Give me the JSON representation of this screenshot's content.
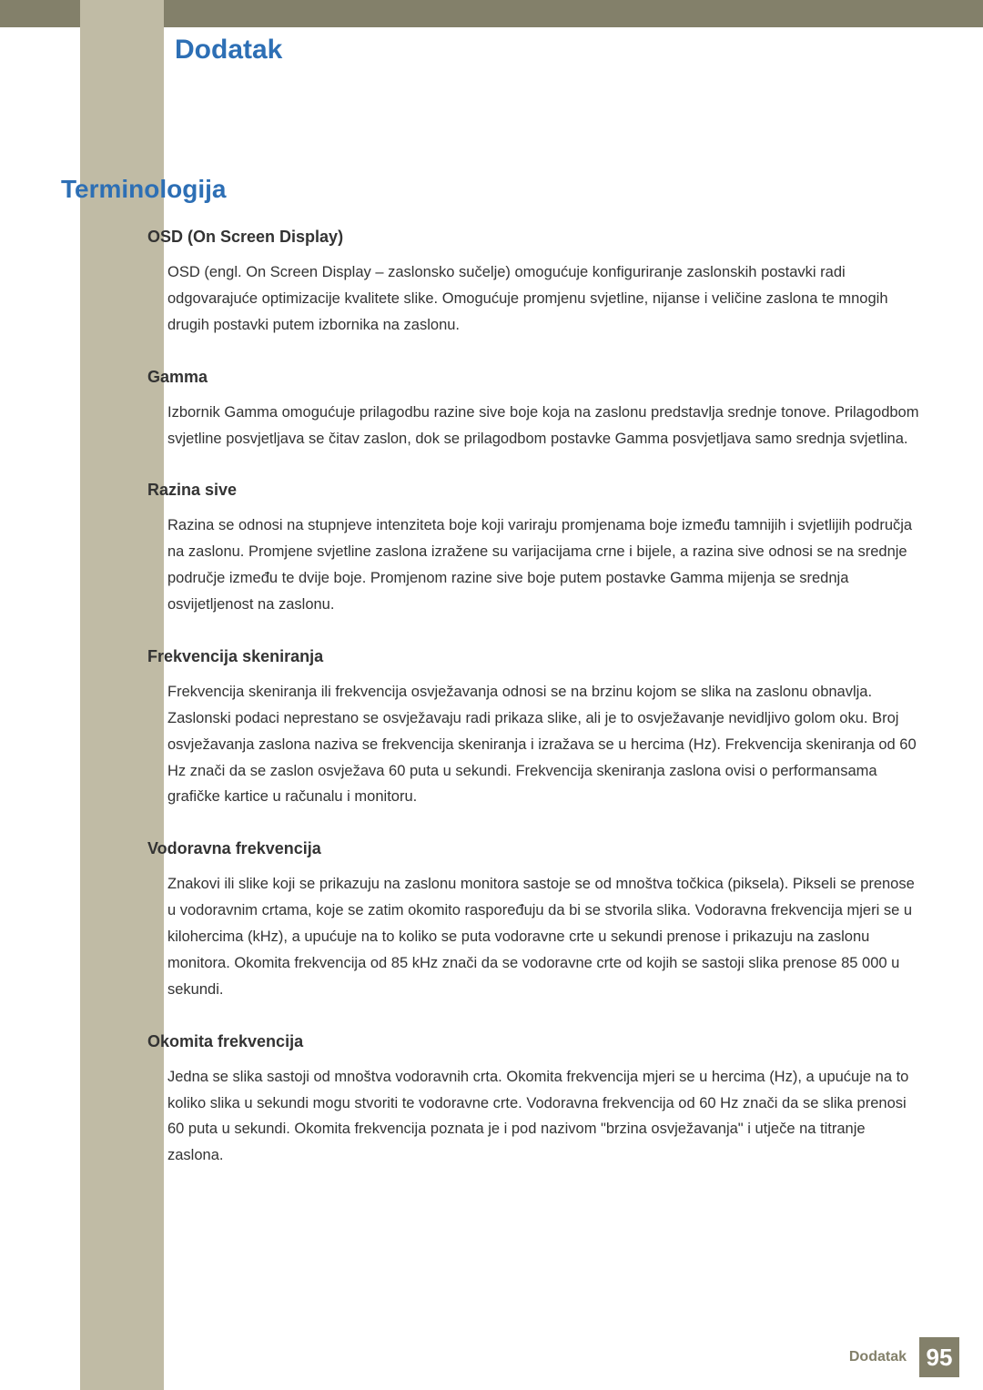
{
  "colors": {
    "top_band": "#83806a",
    "left_band": "#c0bba5",
    "chapter_title": "#2d6fb5",
    "section_title": "#2d6fb5",
    "body_text": "#333333",
    "footer_label": "#83806a",
    "footer_page_bg": "#83806a",
    "footer_page_text": "#ffffff",
    "page_bg": "#ffffff"
  },
  "typography": {
    "chapter_fontsize": 30,
    "section_fontsize": 28,
    "heading_fontsize": 18,
    "body_fontsize": 16.5,
    "body_lineheight": 1.75,
    "footer_label_fontsize": 16,
    "footer_page_fontsize": 26
  },
  "chapter_title": "Dodatak",
  "section_title": "Terminologija",
  "terms": [
    {
      "heading": "OSD (On Screen Display)",
      "body": "OSD (engl. On Screen Display – zaslonsko sučelje) omogućuje konfiguriranje zaslonskih postavki radi odgovarajuće optimizacije kvalitete slike. Omogućuje promjenu svjetline, nijanse i veličine zaslona te mnogih drugih postavki putem izbornika na zaslonu."
    },
    {
      "heading": "Gamma",
      "body": "Izbornik Gamma omogućuje prilagodbu razine sive boje koja na zaslonu predstavlja srednje tonove. Prilagodbom svjetline posvjetljava se čitav zaslon, dok se prilagodbom postavke Gamma posvjetljava samo srednja svjetlina."
    },
    {
      "heading": "Razina sive",
      "body": "Razina se odnosi na stupnjeve intenziteta boje koji variraju promjenama boje između tamnijih i svjetlijih područja na zaslonu. Promjene svjetline zaslona izražene su varijacijama crne i bijele, a razina sive odnosi se na srednje područje između te dvije boje. Promjenom razine sive boje putem postavke Gamma mijenja se srednja osvijetljenost na zaslonu."
    },
    {
      "heading": "Frekvencija skeniranja",
      "body": "Frekvencija skeniranja ili frekvencija osvježavanja odnosi se na brzinu kojom se slika na zaslonu obnavlja. Zaslonski podaci neprestano se osvježavaju radi prikaza slike, ali je to osvježavanje nevidljivo golom oku. Broj osvježavanja zaslona naziva se frekvencija skeniranja i izražava se u hercima (Hz). Frekvencija skeniranja od 60 Hz znači da se zaslon osvježava 60 puta u sekundi. Frekvencija skeniranja zaslona ovisi o performansama grafičke kartice u računalu i monitoru."
    },
    {
      "heading": "Vodoravna frekvencija",
      "body": "Znakovi ili slike koji se prikazuju na zaslonu monitora sastoje se od mnoštva točkica (piksela). Pikseli se prenose u vodoravnim crtama, koje se zatim okomito raspoređuju da bi se stvorila slika. Vodoravna frekvencija mjeri se u kilohercima (kHz), a upućuje na to koliko se puta vodoravne crte u sekundi prenose i prikazuju na zaslonu monitora. Okomita frekvencija od 85 kHz znači da se vodoravne crte od kojih se sastoji slika prenose 85 000 u sekundi."
    },
    {
      "heading": "Okomita frekvencija",
      "body": "Jedna se slika sastoji od mnoštva vodoravnih crta. Okomita frekvencija mjeri se u hercima (Hz), a upućuje na to koliko slika u sekundi mogu stvoriti te vodoravne crte. Vodoravna frekvencija od 60 Hz znači da se slika prenosi 60 puta u sekundi. Okomita frekvencija poznata je i pod nazivom \"brzina osvježavanja\" i utječe na titranje zaslona."
    }
  ],
  "footer": {
    "label": "Dodatak",
    "page_number": "95"
  }
}
